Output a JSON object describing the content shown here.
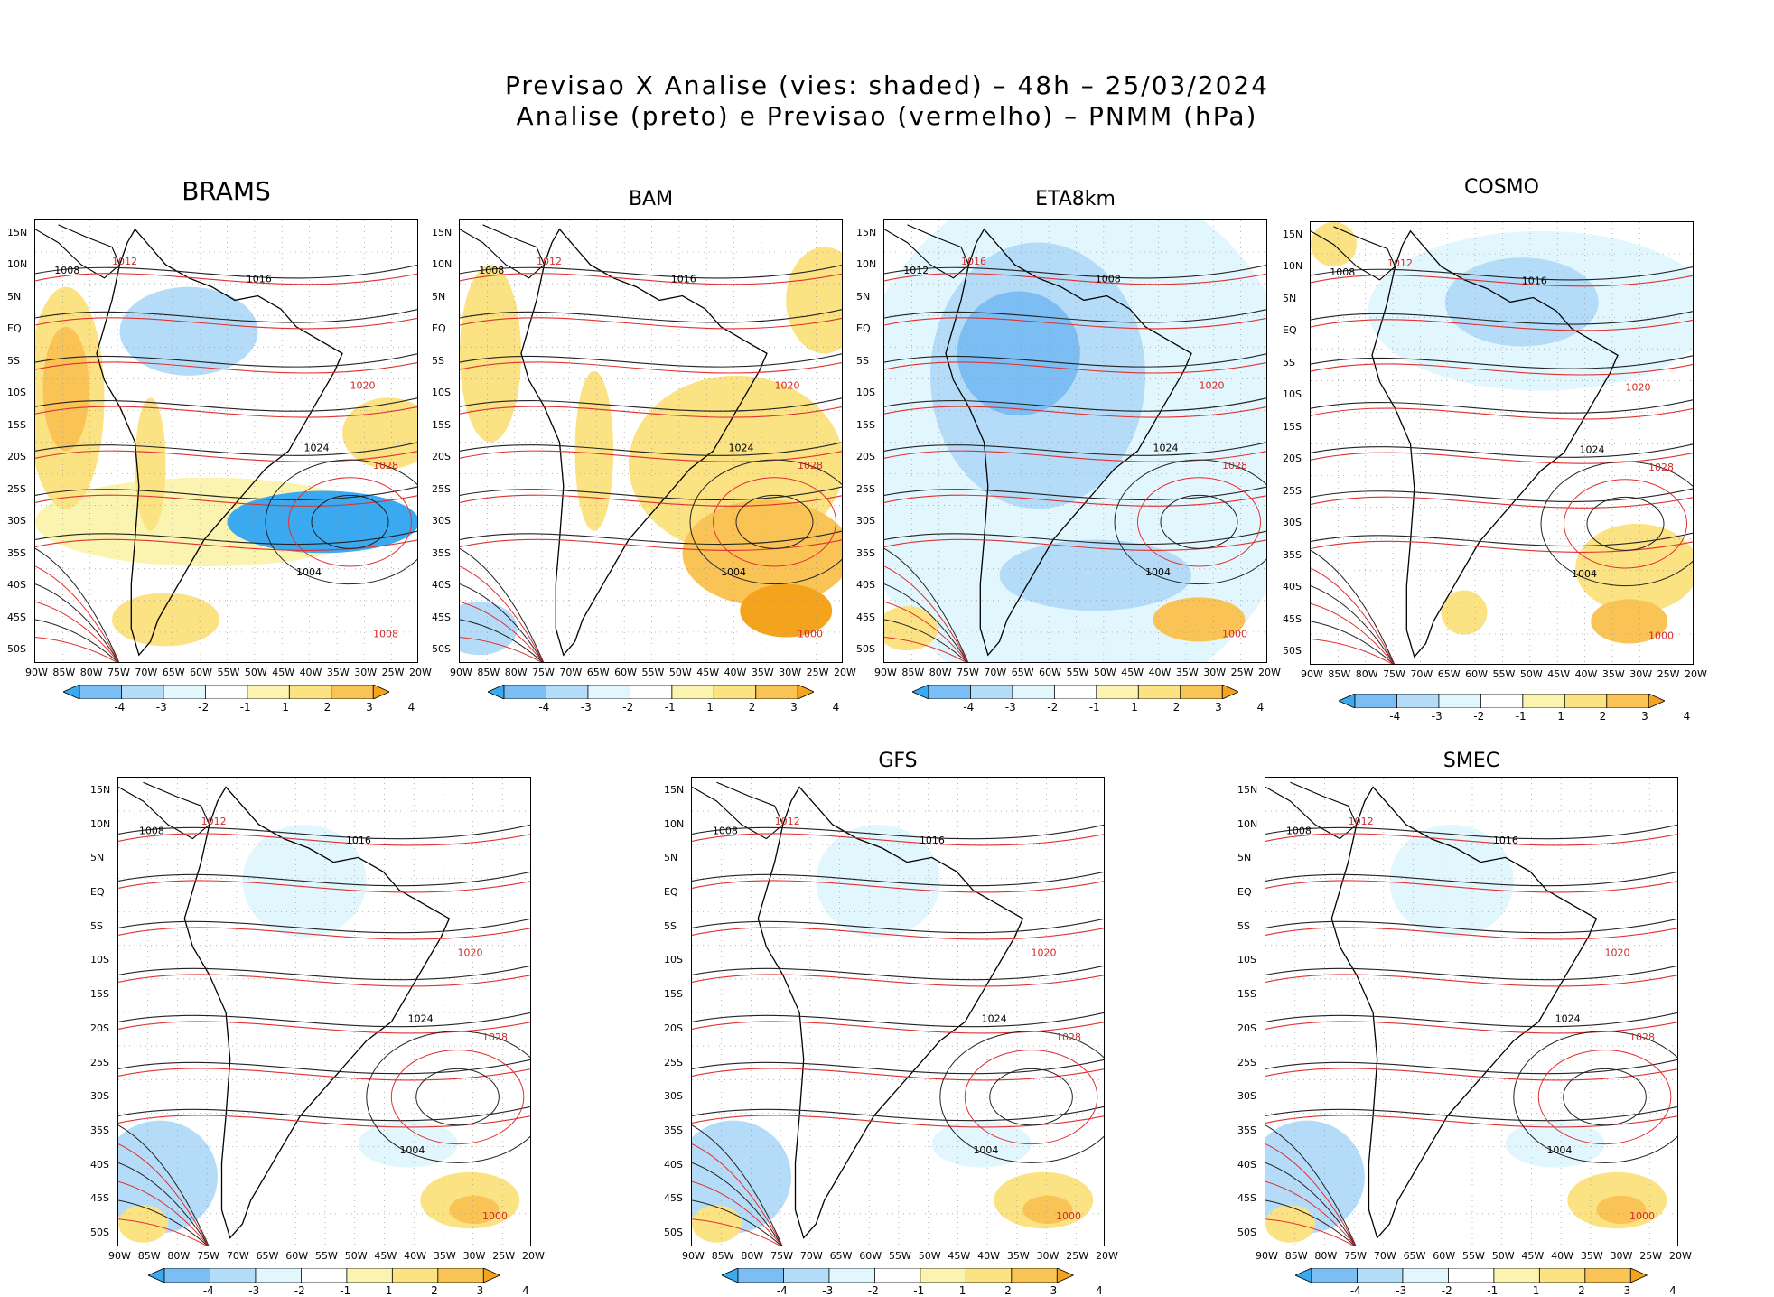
{
  "title": {
    "line1": "Previsao X Analise (vies: shaded) – 48h – 25/03/2024",
    "line2": "Analise (preto) e Previsao (vermelho) – PNMM (hPa)"
  },
  "lat_labels": [
    "15N",
    "10N",
    "5N",
    "EQ",
    "5S",
    "10S",
    "15S",
    "20S",
    "25S",
    "30S",
    "35S",
    "40S",
    "45S",
    "50S"
  ],
  "lon_labels": [
    "90W",
    "85W",
    "80W",
    "75W",
    "70W",
    "65W",
    "60W",
    "55W",
    "50W",
    "45W",
    "40W",
    "35W",
    "30W",
    "25W",
    "20W"
  ],
  "colorbar": {
    "labels": [
      "-4",
      "-3",
      "-2",
      "-1",
      "1",
      "2",
      "3",
      "4"
    ],
    "colors": [
      "#3ba9f0",
      "#7cbdf3",
      "#b4dcf8",
      "#e2f6fd",
      "#ffffff",
      "#fbf3b0",
      "#fbe283",
      "#fac356",
      "#f4a31c"
    ]
  },
  "panels": [
    {
      "id": "brams",
      "title": "BRAMS",
      "bias": "mixed_blue_south",
      "isobars": [
        "1008",
        "1012",
        "1016",
        "1020",
        "1024",
        "1028",
        "1004",
        "1008"
      ]
    },
    {
      "id": "bam",
      "title": "BAM",
      "bias": "warm",
      "isobars": [
        "1008",
        "1012",
        "1016",
        "1020",
        "1024",
        "1028",
        "1004",
        "1000"
      ]
    },
    {
      "id": "eta8km",
      "title": "ETA8km",
      "bias": "cold",
      "isobars": [
        "1012",
        "1016",
        "1008",
        "1020",
        "1024",
        "1028",
        "1004",
        "1000"
      ]
    },
    {
      "id": "cosmo",
      "title": "COSMO",
      "bias": "light_blue",
      "isobars": [
        "1008",
        "1012",
        "1016",
        "1020",
        "1024",
        "1028",
        "1004",
        "1000"
      ]
    },
    {
      "id": "panel5",
      "title": "",
      "bias": "neutral",
      "isobars": [
        "1008",
        "1012",
        "1016",
        "1020",
        "1024",
        "1028",
        "1004",
        "1000"
      ]
    },
    {
      "id": "gfs",
      "title": "GFS",
      "bias": "neutral",
      "isobars": [
        "1008",
        "1012",
        "1016",
        "1020",
        "1024",
        "1028",
        "1004",
        "1000"
      ]
    },
    {
      "id": "smec",
      "title": "SMEC",
      "bias": "neutral",
      "isobars": [
        "1008",
        "1012",
        "1016",
        "1020",
        "1024",
        "1028",
        "1004",
        "1000"
      ]
    }
  ]
}
